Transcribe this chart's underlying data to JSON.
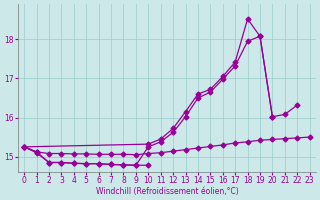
{
  "line_flat_x": [
    0,
    1,
    2,
    3,
    4,
    5,
    6,
    7,
    8,
    9,
    10
  ],
  "line_flat_y": [
    15.25,
    15.1,
    14.85,
    14.85,
    14.83,
    14.82,
    14.82,
    14.8,
    14.79,
    14.78,
    14.78
  ],
  "line_gradual_x": [
    0,
    1,
    2,
    3,
    4,
    5,
    6,
    7,
    8,
    9,
    10,
    11,
    12,
    13,
    14,
    15,
    16,
    17,
    18,
    19,
    20,
    21,
    22,
    23
  ],
  "line_gradual_y": [
    15.25,
    15.12,
    15.08,
    15.08,
    15.07,
    15.07,
    15.06,
    15.06,
    15.06,
    15.05,
    15.08,
    15.1,
    15.14,
    15.18,
    15.22,
    15.26,
    15.3,
    15.35,
    15.38,
    15.42,
    15.44,
    15.46,
    15.48,
    15.5
  ],
  "line_mid_x": [
    0,
    1,
    2,
    3,
    4,
    5,
    6,
    7,
    8,
    9,
    10,
    11,
    12,
    13,
    14,
    15,
    16,
    17,
    18,
    19,
    20,
    21,
    22
  ],
  "line_mid_y": [
    15.25,
    15.12,
    14.85,
    14.85,
    14.83,
    14.82,
    14.82,
    14.8,
    14.79,
    14.78,
    15.25,
    15.38,
    15.62,
    16.02,
    16.5,
    16.65,
    16.98,
    17.32,
    17.95,
    18.08,
    16.02,
    16.08,
    16.32
  ],
  "line_top_x": [
    0,
    10,
    11,
    12,
    13,
    14,
    15,
    16,
    17,
    18,
    19,
    20
  ],
  "line_top_y": [
    15.25,
    15.32,
    15.45,
    15.72,
    16.15,
    16.6,
    16.72,
    17.05,
    17.42,
    18.52,
    18.08,
    16.02
  ],
  "line_color": "#990099",
  "bg_color": "#cce8e8",
  "grid_color": "#99cccc",
  "xlabel": "Windchill (Refroidissement éolien,°C)",
  "xlim": [
    -0.5,
    23.5
  ],
  "ylim": [
    14.6,
    18.9
  ],
  "yticks": [
    15,
    16,
    17,
    18
  ],
  "xticks": [
    0,
    1,
    2,
    3,
    4,
    5,
    6,
    7,
    8,
    9,
    10,
    11,
    12,
    13,
    14,
    15,
    16,
    17,
    18,
    19,
    20,
    21,
    22,
    23
  ],
  "xlabel_fontsize": 5.5,
  "tick_fontsize": 5.5,
  "marker_size": 2.5,
  "line_width": 0.9
}
